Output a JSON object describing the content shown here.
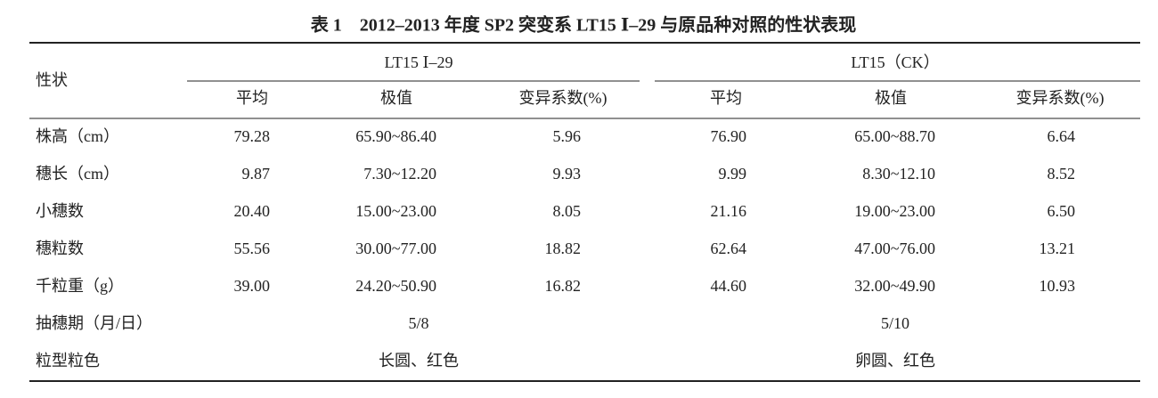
{
  "title": "表 1　2012–2013 年度 SP2 突变系 LT15 Ⅰ–29 与原品种对照的性状表现",
  "table": {
    "corner": "性状",
    "groups": [
      "LT15 Ⅰ–29",
      "LT15（CK）"
    ],
    "subheaders": [
      "平均",
      "极值",
      "变异系数(%)",
      "平均",
      "极值",
      "变异系数(%)"
    ],
    "rows": [
      [
        "株高（cm）",
        "79.28",
        "65.90~86.40",
        "5.96",
        "76.90",
        "65.00~88.70",
        "6.64"
      ],
      [
        "穗长（cm）",
        "9.87",
        "7.30~12.20",
        "9.93",
        "9.99",
        "8.30~12.10",
        "8.52"
      ],
      [
        "小穗数",
        "20.40",
        "15.00~23.00",
        "8.05",
        "21.16",
        "19.00~23.00",
        "6.50"
      ],
      [
        "穗粒数",
        "55.56",
        "30.00~77.00",
        "18.82",
        "62.64",
        "47.00~76.00",
        "13.21"
      ],
      [
        "千粒重（g）",
        "39.00",
        "24.20~50.90",
        "16.82",
        "44.60",
        "32.00~49.90",
        "10.93"
      ]
    ],
    "span_rows": [
      [
        "抽穗期（月/日）",
        "5/8",
        "5/10"
      ],
      [
        "粒型粒色",
        "长圆、红色",
        "卵圆、红色"
      ]
    ]
  }
}
